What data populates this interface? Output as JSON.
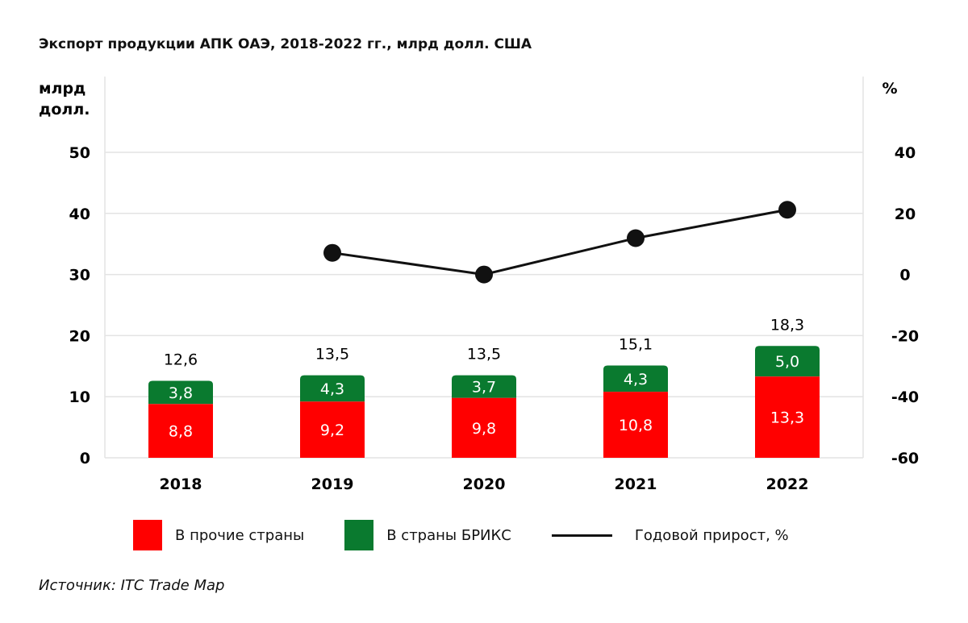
{
  "title": "Экспорт продукции АПК ОАЭ, 2018-2022 гг., млрд долл. США",
  "source": "Источник: ITC Trade Map",
  "colors": {
    "other": "#ff0000",
    "brics": "#0a7a2f",
    "line": "#111111",
    "grid": "#e3e3e3"
  },
  "chart_data": {
    "type": "bar",
    "stacked": true,
    "title": "Экспорт продукции АПК ОАЭ, 2018-2022 гг., млрд долл. США",
    "categories": [
      "2018",
      "2019",
      "2020",
      "2021",
      "2022"
    ],
    "ylabel": "млрд долл.",
    "ylabel_lines": [
      "млрд",
      "долл."
    ],
    "y2label": "%",
    "ylim": [
      0,
      50
    ],
    "y2lim": [
      -60,
      40
    ],
    "yticks": [
      "0",
      "10",
      "20",
      "30",
      "40",
      "50"
    ],
    "y2ticks": [
      "-60",
      "-40",
      "-20",
      "0",
      "20",
      "40"
    ],
    "grid": true,
    "legend_position": "bottom",
    "series": [
      {
        "name": "В прочие страны",
        "axis": "left",
        "values": [
          8.8,
          9.2,
          9.8,
          10.8,
          13.3
        ],
        "labels": [
          "8,8",
          "9,2",
          "9,8",
          "10,8",
          "13,3"
        ]
      },
      {
        "name": "В страны БРИКС",
        "axis": "left",
        "values": [
          3.8,
          4.3,
          3.7,
          4.3,
          5.0
        ],
        "labels": [
          "3,8",
          "4,3",
          "3,7",
          "4,3",
          "5,0"
        ]
      },
      {
        "name": "Годовой прирост, %",
        "type": "line",
        "axis": "right",
        "values": [
          null,
          7.1,
          0.0,
          11.9,
          21.2
        ]
      }
    ],
    "totals": [
      "12,6",
      "13,5",
      "13,5",
      "15,1",
      "18,3"
    ]
  }
}
